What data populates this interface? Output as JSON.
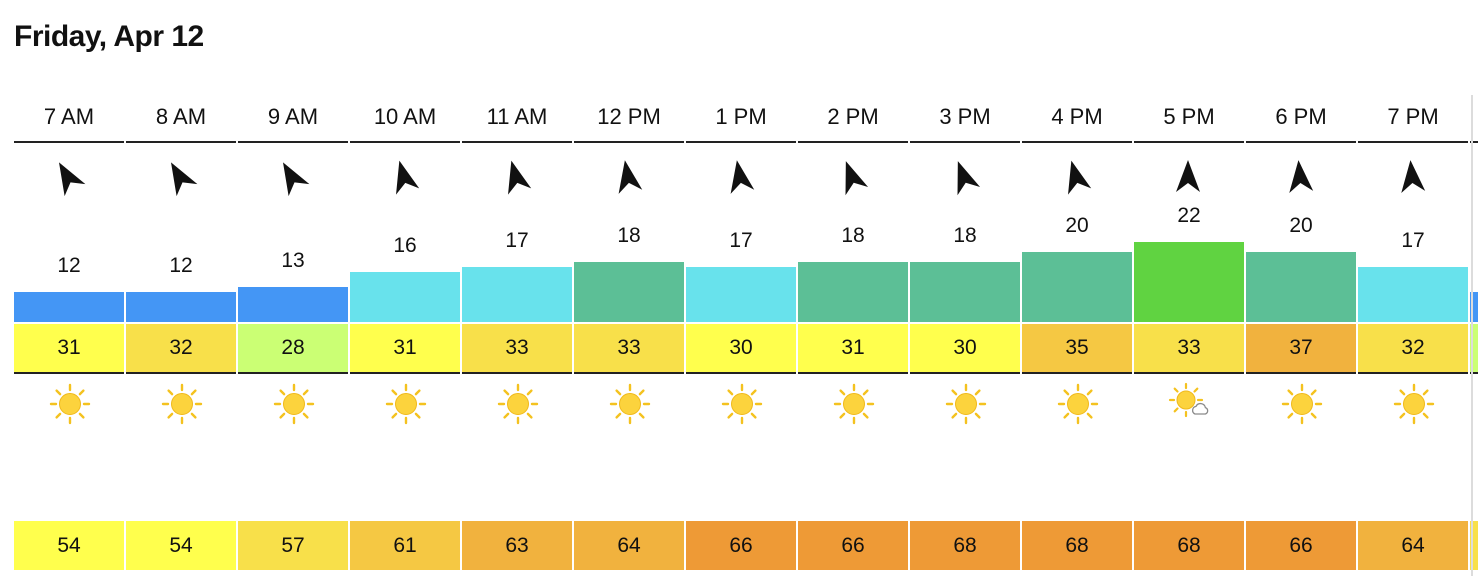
{
  "day": {
    "title": "Friday, Apr 12"
  },
  "hours": [
    {
      "time": "7 AM",
      "wind_dir_deg": 60,
      "speed": "12",
      "speed_color": "#4496f5",
      "temp": "31",
      "temp_color": "#ffff4d",
      "icon": "sun-icon",
      "humidity": "54",
      "humidity_color": "#ffff4d"
    },
    {
      "time": "8 AM",
      "wind_dir_deg": 60,
      "speed": "12",
      "speed_color": "#4496f5",
      "temp": "32",
      "temp_color": "#f8e04a",
      "icon": "sun-icon",
      "humidity": "54",
      "humidity_color": "#ffff4d"
    },
    {
      "time": "9 AM",
      "wind_dir_deg": 60,
      "speed": "13",
      "speed_color": "#4496f5",
      "temp": "28",
      "temp_color": "#cbff74",
      "icon": "sun-icon",
      "humidity": "57",
      "humidity_color": "#f8e04a"
    },
    {
      "time": "10 AM",
      "wind_dir_deg": 75,
      "speed": "16",
      "speed_color": "#68e2ec",
      "temp": "31",
      "temp_color": "#ffff4d",
      "icon": "sun-icon",
      "humidity": "61",
      "humidity_color": "#f5c843"
    },
    {
      "time": "11 AM",
      "wind_dir_deg": 75,
      "speed": "17",
      "speed_color": "#68e2ec",
      "temp": "33",
      "temp_color": "#f8e04a",
      "icon": "sun-icon",
      "humidity": "63",
      "humidity_color": "#f1b23e"
    },
    {
      "time": "12 PM",
      "wind_dir_deg": 80,
      "speed": "18",
      "speed_color": "#5cbf96",
      "temp": "33",
      "temp_color": "#f8e04a",
      "icon": "sun-icon",
      "humidity": "64",
      "humidity_color": "#f1b23e"
    },
    {
      "time": "1 PM",
      "wind_dir_deg": 80,
      "speed": "17",
      "speed_color": "#68e2ec",
      "temp": "30",
      "temp_color": "#ffff4d",
      "icon": "sun-icon",
      "humidity": "66",
      "humidity_color": "#ee9a36"
    },
    {
      "time": "2 PM",
      "wind_dir_deg": 70,
      "speed": "18",
      "speed_color": "#5cbf96",
      "temp": "31",
      "temp_color": "#ffff4d",
      "icon": "sun-icon",
      "humidity": "66",
      "humidity_color": "#ee9a36"
    },
    {
      "time": "3 PM",
      "wind_dir_deg": 70,
      "speed": "18",
      "speed_color": "#5cbf96",
      "temp": "30",
      "temp_color": "#ffff4d",
      "icon": "sun-icon",
      "humidity": "68",
      "humidity_color": "#ee9a36"
    },
    {
      "time": "4 PM",
      "wind_dir_deg": 75,
      "speed": "20",
      "speed_color": "#5cbf96",
      "temp": "35",
      "temp_color": "#f5c843",
      "icon": "sun-icon",
      "humidity": "68",
      "humidity_color": "#ee9a36"
    },
    {
      "time": "5 PM",
      "wind_dir_deg": 90,
      "speed": "22",
      "speed_color": "#60d341",
      "temp": "33",
      "temp_color": "#f8e04a",
      "icon": "sun-cloud-icon",
      "humidity": "68",
      "humidity_color": "#ee9a36"
    },
    {
      "time": "6 PM",
      "wind_dir_deg": 85,
      "speed": "20",
      "speed_color": "#5cbf96",
      "temp": "37",
      "temp_color": "#f1b23e",
      "icon": "sun-icon",
      "humidity": "66",
      "humidity_color": "#ee9a36"
    },
    {
      "time": "7 PM",
      "wind_dir_deg": 85,
      "speed": "17",
      "speed_color": "#68e2ec",
      "temp": "32",
      "temp_color": "#f8e04a",
      "icon": "sun-icon",
      "humidity": "64",
      "humidity_color": "#f1b23e"
    }
  ],
  "scale": {
    "speed_max": 22
  }
}
